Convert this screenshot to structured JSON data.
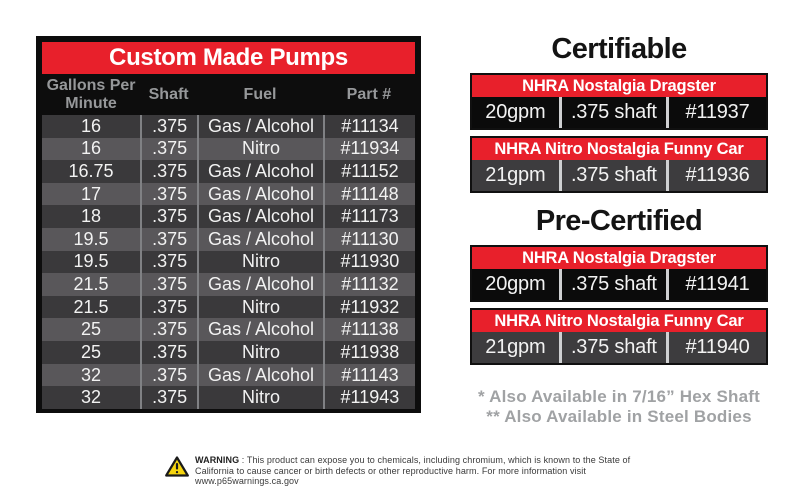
{
  "colors": {
    "red": "#e8202b",
    "frame_black": "#0d0d0d",
    "row_dark": "#3a393b",
    "row_light": "#59575a",
    "row_text": "#f2f2f2",
    "header_text": "#96989a",
    "divider_left": "#808184",
    "cell_black": "#0b0b0b",
    "cell_gray": "#3d3c3e",
    "divider_right": "#cfd0d2",
    "footnote_gray": "#a0a2a4",
    "warning_yellow": "#f5d40e"
  },
  "pump_table": {
    "title": "Custom Made Pumps",
    "columns": [
      "Gallons Per\nMinute",
      "Shaft",
      "Fuel",
      "Part #"
    ],
    "rows": [
      [
        "16",
        ".375",
        "Gas / Alcohol",
        "#11134"
      ],
      [
        "16",
        ".375",
        "Nitro",
        "#11934"
      ],
      [
        "16.75",
        ".375",
        "Gas / Alcohol",
        "#11152"
      ],
      [
        "17",
        ".375",
        "Gas / Alcohol",
        "#11148"
      ],
      [
        "18",
        ".375",
        "Gas / Alcohol",
        "#11173"
      ],
      [
        "19.5",
        ".375",
        "Gas / Alcohol",
        "#11130"
      ],
      [
        "19.5",
        ".375",
        "Nitro",
        "#11930"
      ],
      [
        "21.5",
        ".375",
        "Gas / Alcohol",
        "#11132"
      ],
      [
        "21.5",
        ".375",
        "Nitro",
        "#11932"
      ],
      [
        "25",
        ".375",
        "Gas / Alcohol",
        "#11138"
      ],
      [
        "25",
        ".375",
        "Nitro",
        "#11938"
      ],
      [
        "32",
        ".375",
        "Gas / Alcohol",
        "#11143"
      ],
      [
        "32",
        ".375",
        "Nitro",
        "#11943"
      ]
    ]
  },
  "sections": [
    {
      "heading": "Certifiable",
      "entries": [
        {
          "banner": "NHRA Nostalgia Dragster",
          "gpm": "20gpm",
          "shaft": ".375 shaft",
          "part": "#11937"
        },
        {
          "banner": "NHRA Nitro Nostalgia Funny Car",
          "gpm": "21gpm",
          "shaft": ".375 shaft",
          "part": "#11936"
        }
      ]
    },
    {
      "heading": "Pre-Certified",
      "entries": [
        {
          "banner": "NHRA Nostalgia Dragster",
          "gpm": "20gpm",
          "shaft": ".375 shaft",
          "part": "#11941"
        },
        {
          "banner": "NHRA Nitro Nostalgia Funny Car",
          "gpm": "21gpm",
          "shaft": ".375 shaft",
          "part": "#11940"
        }
      ]
    }
  ],
  "footnotes": [
    "* Also Available in 7/16” Hex Shaft",
    "** Also Available in Steel Bodies"
  ],
  "warning": {
    "label": "WARNING",
    "text": " : This product can expose you to chemicals, including chromium, which is known to the State of California to cause cancer or birth defects or other reproductive harm. For more information visit www.p65warnings.ca.gov"
  }
}
